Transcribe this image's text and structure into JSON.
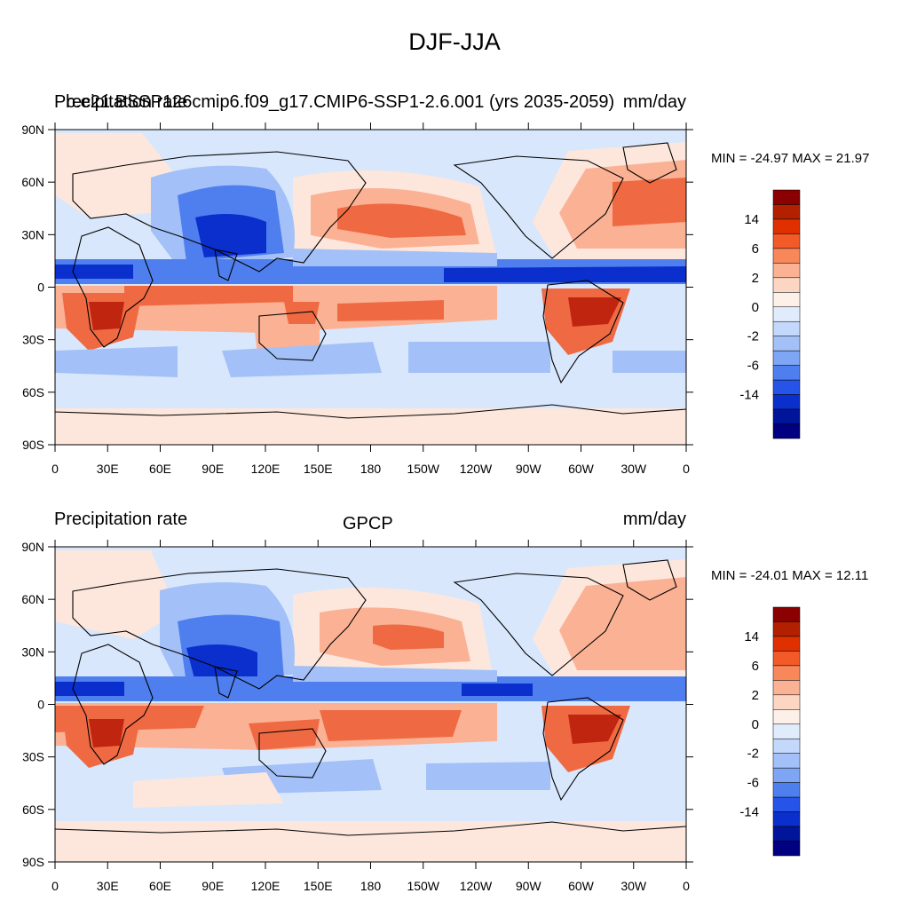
{
  "figure": {
    "title": "DJF-JJA"
  },
  "panels": [
    {
      "left_title_a": "Precipitation rate",
      "left_title_b": "b.e21.BSSP126cmip6.f09_g17.CMIP6-SSP1-2.6.001 (yrs 2035-2059)",
      "center_title": "",
      "right_title": "mm/day",
      "stats": "MIN = -24.97 MAX =  21.97"
    },
    {
      "left_title_a": "Precipitation rate",
      "left_title_b": "",
      "center_title": "GPCP",
      "right_title": "mm/day",
      "stats": "MIN = -24.01 MAX =  12.11"
    }
  ],
  "axes": {
    "lat_labels": [
      "90N",
      "60N",
      "30N",
      "0",
      "30S",
      "60S",
      "90S"
    ],
    "lon_labels": [
      "0",
      "30E",
      "60E",
      "90E",
      "120E",
      "150E",
      "180",
      "150W",
      "120W",
      "90W",
      "60W",
      "30W",
      "0"
    ]
  },
  "colorbar": {
    "labels": [
      "14",
      "6",
      "2",
      "0",
      "-2",
      "-6",
      "-14"
    ],
    "colors": [
      "#8b0000",
      "#b22000",
      "#e03000",
      "#f25a28",
      "#f8875a",
      "#fbb194",
      "#fdd6c3",
      "#fdf0e8",
      "#e0ecfc",
      "#c3d8fa",
      "#a3c1f8",
      "#7ea6f4",
      "#4f7fee",
      "#2653e8",
      "#0a2fcc",
      "#00159a",
      "#000080"
    ]
  },
  "colors": {
    "pos_strong": "#c0250f",
    "pos": "#ef6a43",
    "pos_weak": "#fbb194",
    "near_pos": "#fde7dc",
    "near_neg": "#d8e7fc",
    "neg_weak": "#a3c1f8",
    "neg": "#4f7fee",
    "neg_strong": "#0a2fcc"
  }
}
